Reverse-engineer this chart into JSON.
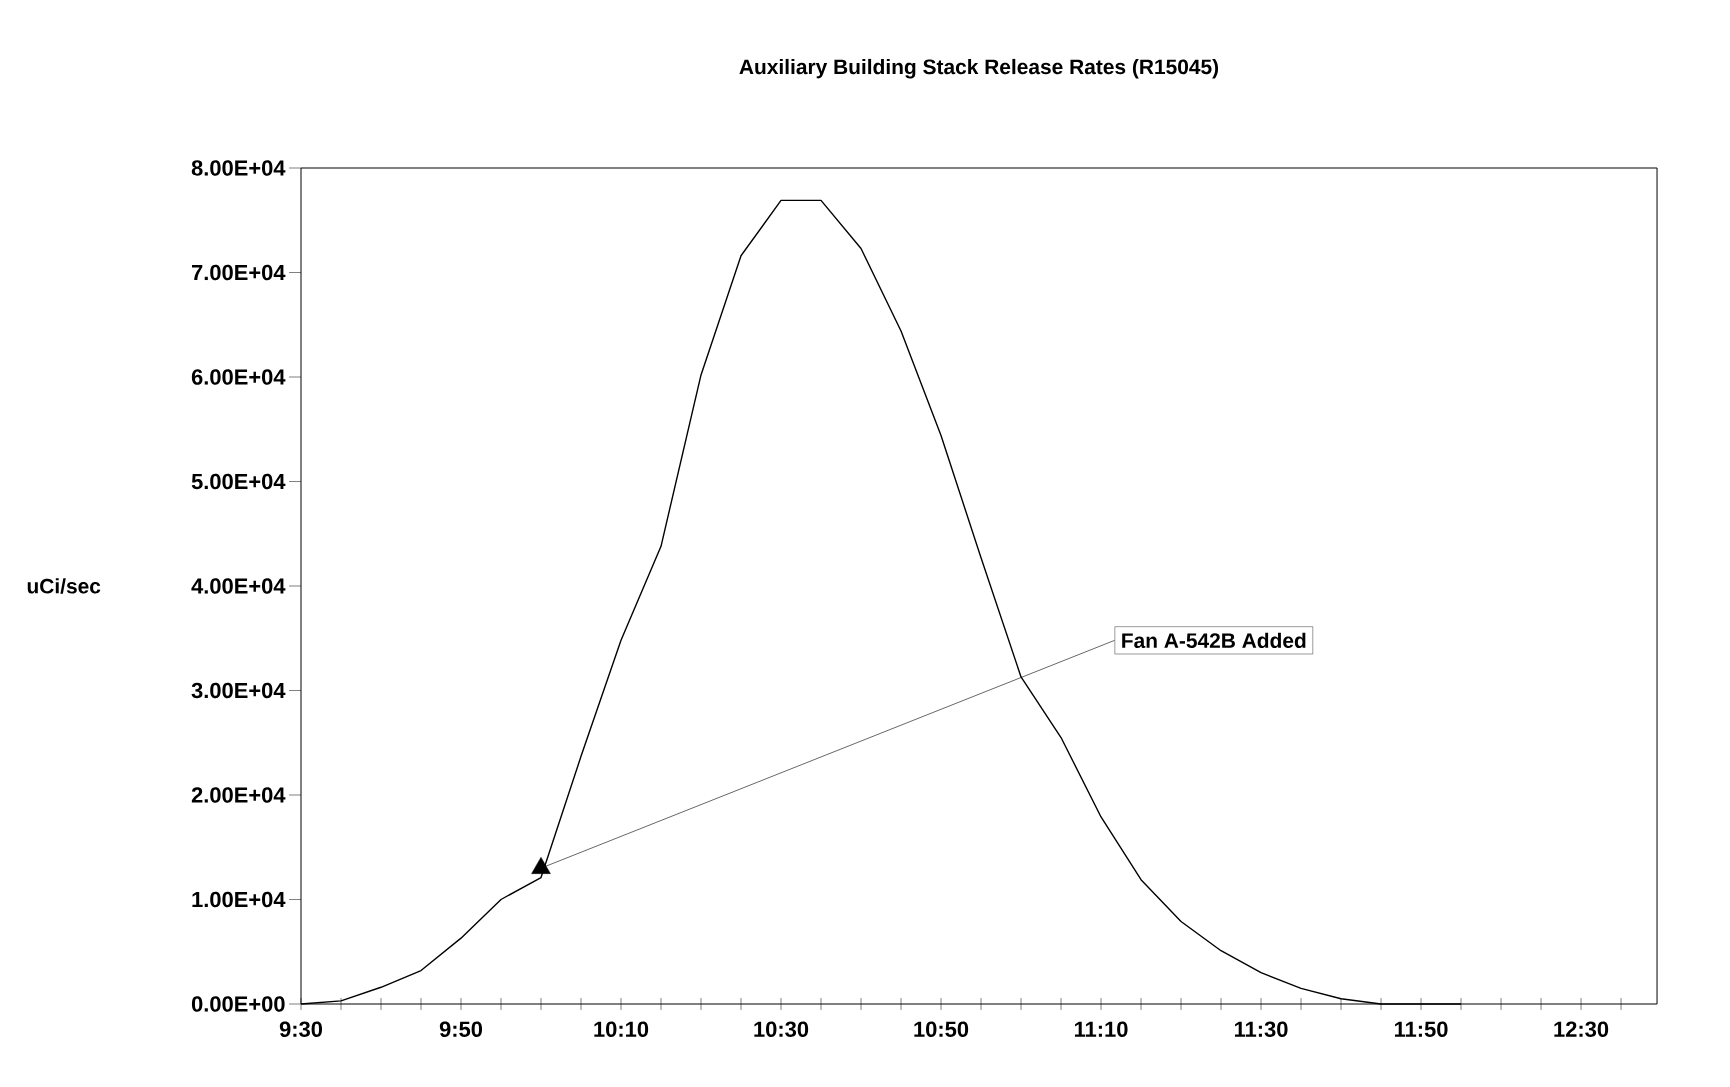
{
  "chart_data": {
    "type": "line",
    "title": "Auxiliary Building Stack Release Rates (R15045)",
    "categories": [
      "9:30",
      null,
      null,
      null,
      "9:50",
      null,
      null,
      null,
      "10:10",
      null,
      null,
      null,
      "10:30",
      null,
      null,
      null,
      "10:50",
      null,
      null,
      null,
      "11:10",
      null,
      null,
      null,
      "11:30",
      null,
      null,
      null,
      "11:50",
      null,
      null,
      null,
      "12:30",
      null
    ],
    "series": [
      {
        "color": "#000000",
        "marker": "none",
        "line_style": "solid",
        "values": [
          0,
          300,
          1600,
          3200,
          6300,
          10000,
          12100,
          23700,
          34800,
          43800,
          60200,
          71600,
          76900,
          76900,
          72300,
          64400,
          54400,
          42700,
          31300,
          25500,
          17900,
          11900,
          7900,
          5100,
          3000,
          1500,
          500,
          0,
          0,
          0,
          null,
          null,
          null,
          null
        ]
      },
      {
        "type": "scatter",
        "color": "#000000",
        "marker": "triangle",
        "values": [
          null,
          null,
          null,
          null,
          null,
          null,
          13000,
          null,
          null,
          null,
          null,
          null,
          null,
          null,
          null,
          null,
          null,
          null,
          null,
          null,
          null,
          null,
          null,
          null,
          null,
          null,
          null,
          null,
          null,
          null,
          null,
          null,
          null,
          null
        ]
      }
    ],
    "grid": false,
    "ylim": [
      0,
      80000
    ],
    "yticks": [
      {
        "value": 0,
        "label": "0.00E+00"
      },
      {
        "value": 10000,
        "label": "1.00E+04"
      },
      {
        "value": 20000,
        "label": "2.00E+04"
      },
      {
        "value": 30000,
        "label": "3.00E+04"
      },
      {
        "value": 40000,
        "label": "4.00E+04"
      },
      {
        "value": 50000,
        "label": "5.00E+04"
      },
      {
        "value": 60000,
        "label": "6.00E+04"
      },
      {
        "value": 70000,
        "label": "7.00E+04"
      },
      {
        "value": 80000,
        "label": "8.00E+04"
      }
    ],
    "annotations": [
      "uCi/sec",
      "Fan A-542B Added"
    ]
  }
}
